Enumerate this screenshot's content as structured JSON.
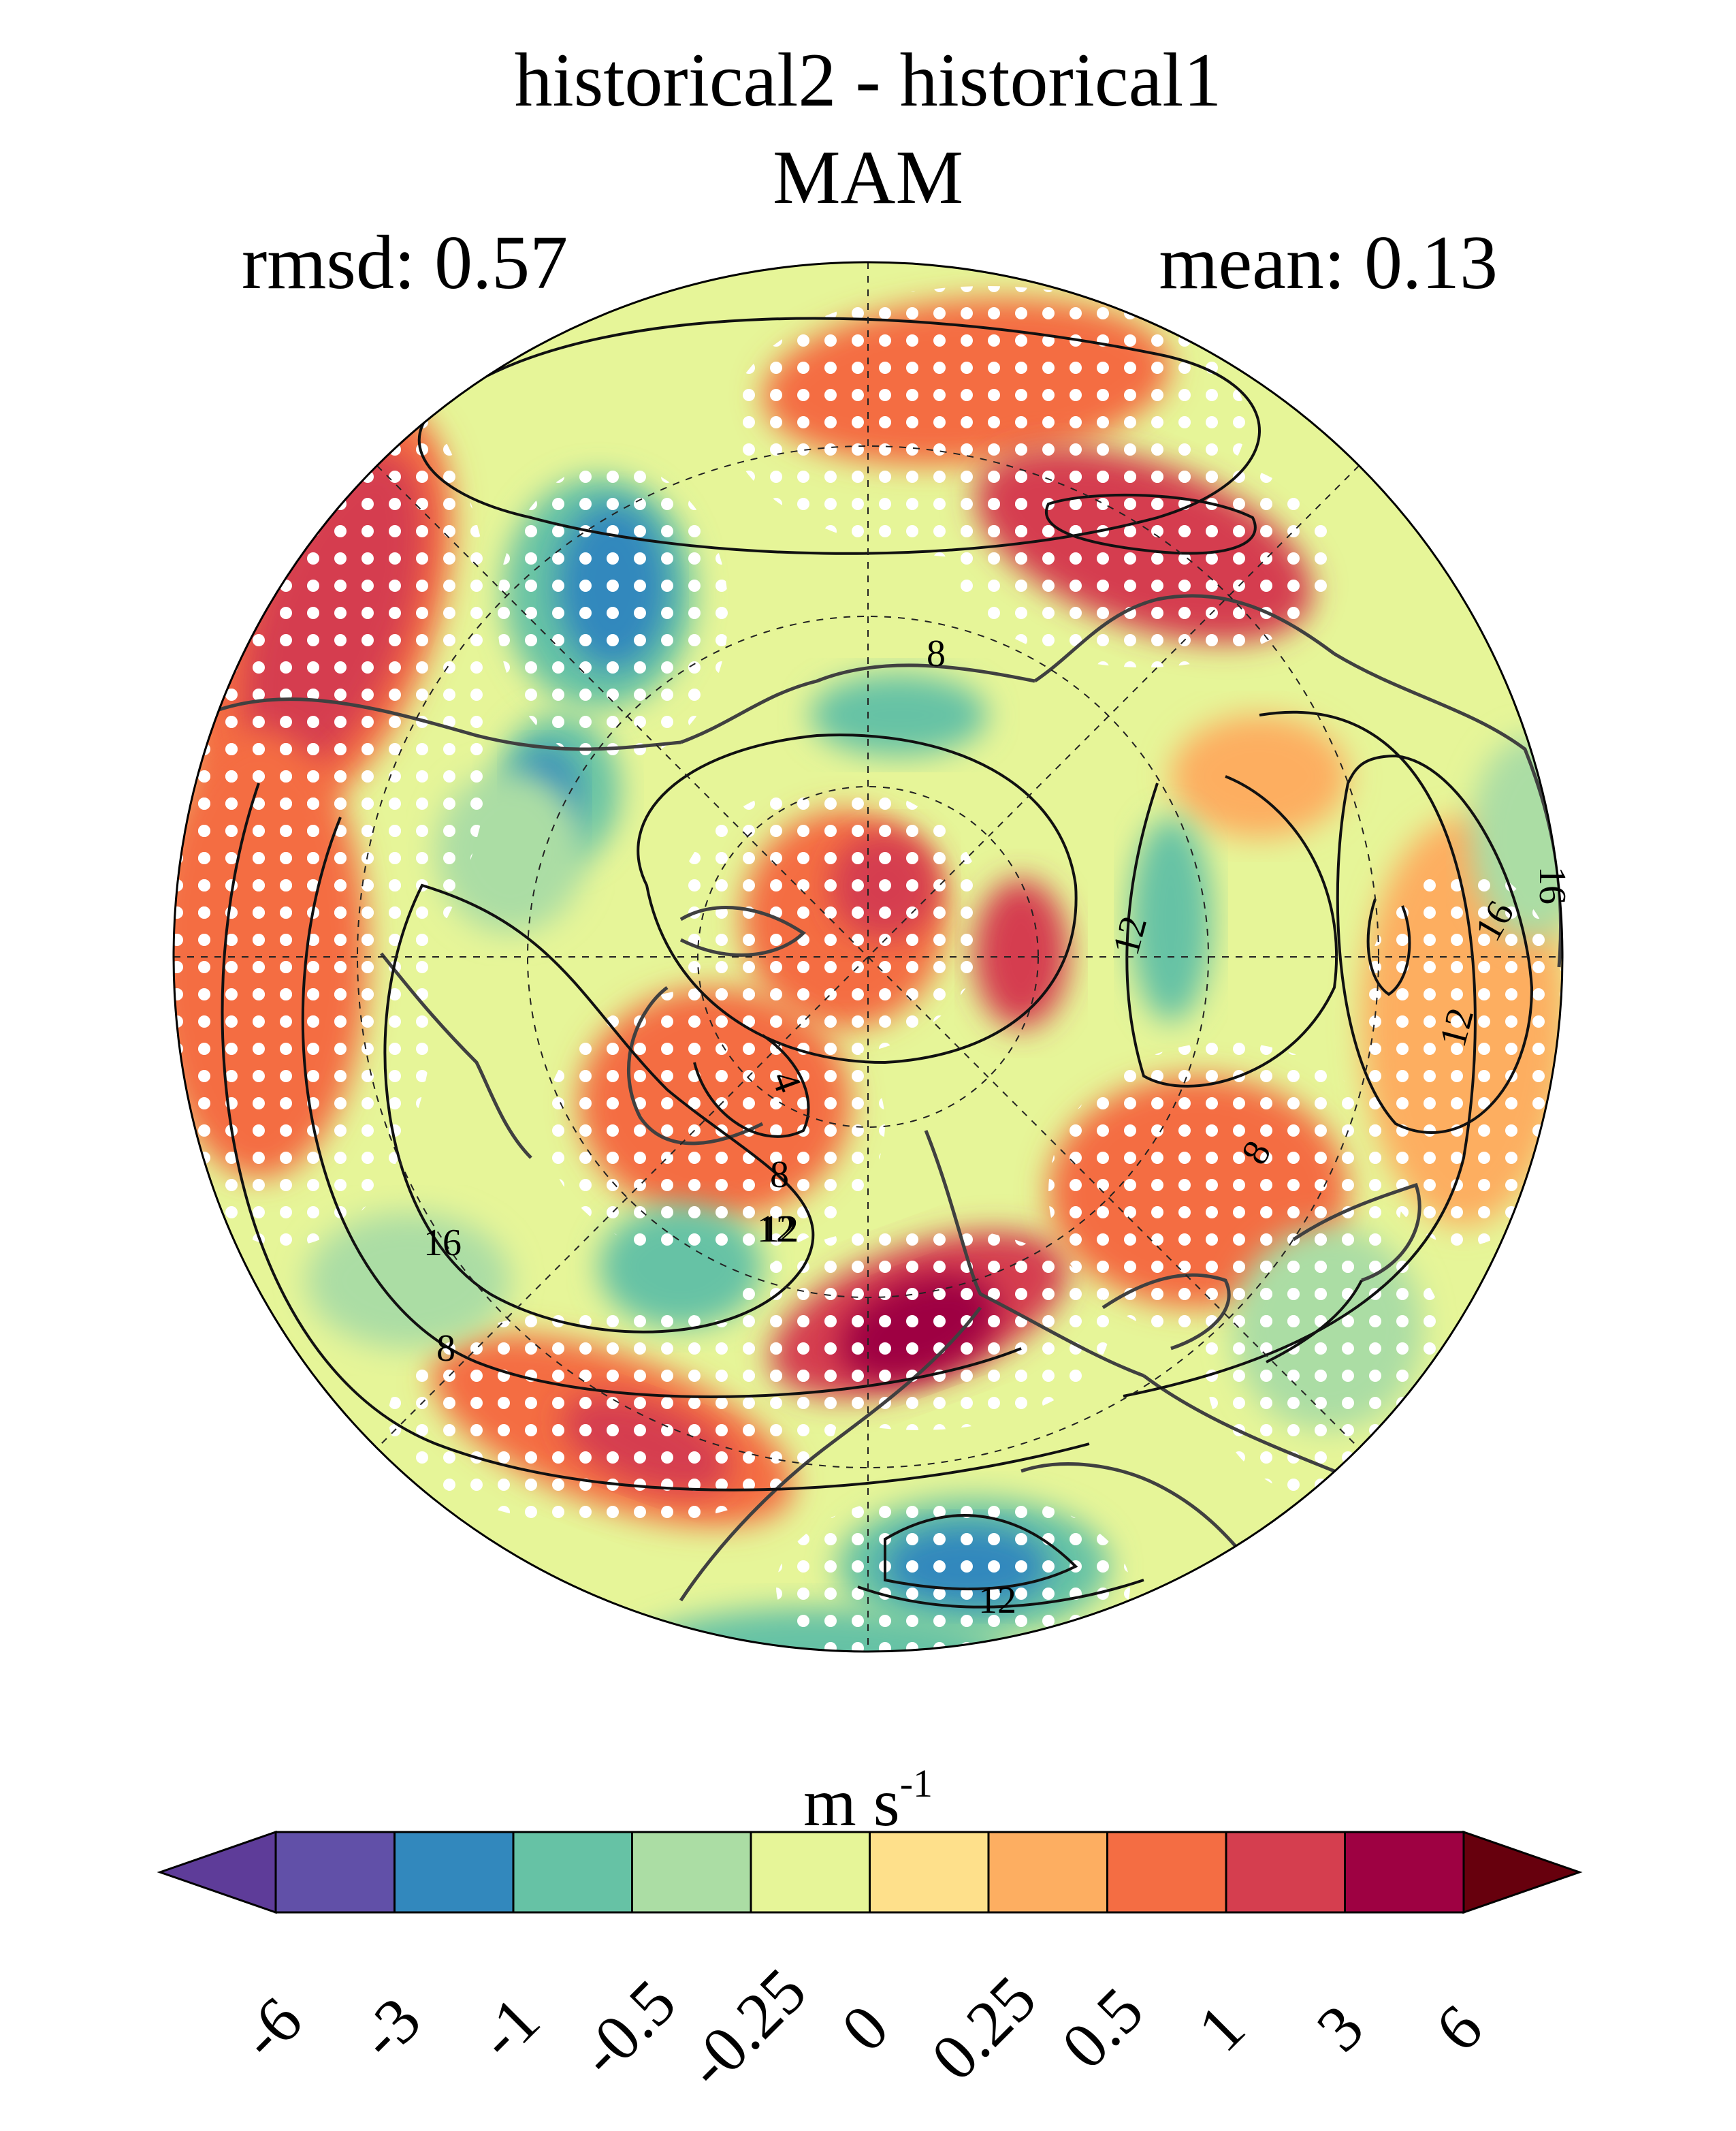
{
  "figure": {
    "title_line1": "historical2 - historical1",
    "title_line2": "MAM",
    "rmsd_text": "rmsd: 0.57",
    "mean_text": "mean: 0.13",
    "projection": "north polar stereographic",
    "stippling": "white dots mark significant differences",
    "contour_labels": [
      "8",
      "8",
      "8",
      "8",
      "4",
      "12",
      "12",
      "12",
      "12",
      "12",
      "16",
      "16",
      "16"
    ]
  },
  "colorbar": {
    "units_base": "m s",
    "units_exp": "-1",
    "tick_labels": [
      "-6",
      "-3",
      "-1",
      "-0.5",
      "-0.25",
      "0",
      "0.25",
      "0.5",
      "1",
      "3",
      "6"
    ],
    "colors": [
      "#5e3c99",
      "#6150a8",
      "#3288bd",
      "#66c2a5",
      "#abdda4",
      "#e6f598",
      "#fee08b",
      "#fdae61",
      "#f46d43",
      "#d53e4f",
      "#9e0142",
      "#67000d"
    ],
    "extend": "both"
  },
  "palette": {
    "coast": "#404040",
    "contour": "#111111",
    "dots": "#ffffff"
  }
}
